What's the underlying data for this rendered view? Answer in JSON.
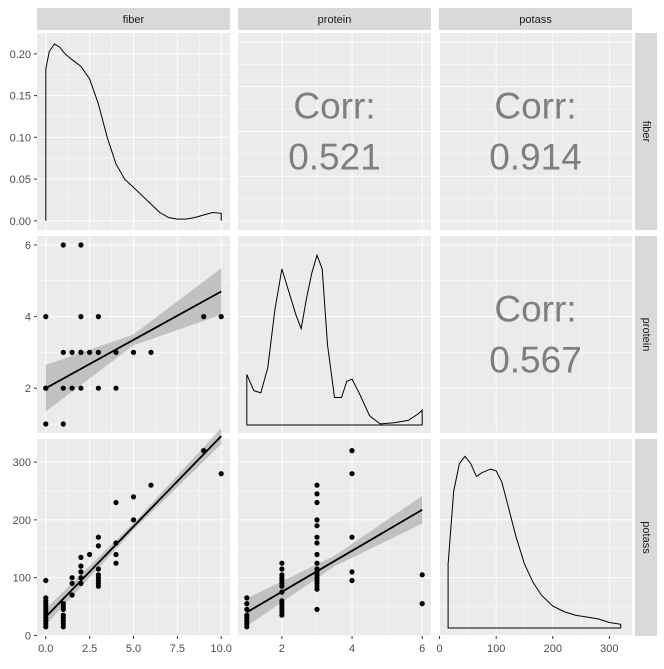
{
  "chart_data": {
    "type": "scatter",
    "variables": [
      "fiber",
      "protein",
      "potass"
    ],
    "strip_labels": {
      "col": [
        "fiber",
        "protein",
        "potass"
      ],
      "row": [
        "fiber",
        "protein",
        "potass"
      ]
    },
    "corr_label": "Corr:",
    "correlations": {
      "fiber_protein": "0.521",
      "fiber_potass": "0.914",
      "protein_potass": "0.567"
    },
    "axes": {
      "fiber": {
        "range": [
          -0.5,
          10.5
        ],
        "ticks": [
          0,
          2.5,
          5,
          7.5,
          10
        ],
        "tick_labels": [
          "0.0",
          "2.5",
          "5.0",
          "7.5",
          "10.0"
        ]
      },
      "protein": {
        "range": [
          0.75,
          6.25
        ],
        "ticks": [
          2,
          4,
          6
        ],
        "tick_labels": [
          "2",
          "4",
          "6"
        ]
      },
      "potass": {
        "range": [
          -1,
          340
        ],
        "ticks": [
          0,
          100,
          200,
          300
        ],
        "tick_labels": [
          "0",
          "100",
          "200",
          "300"
        ]
      },
      "density_fiber": {
        "range": [
          -0.011,
          0.225
        ],
        "ticks": [
          0,
          0.05,
          0.1,
          0.15,
          0.2
        ],
        "tick_labels": [
          "0.00",
          "0.05",
          "0.10",
          "0.15",
          "0.20"
        ]
      }
    },
    "densities": {
      "fiber": [
        [
          0,
          0.182
        ],
        [
          0.2,
          0.203
        ],
        [
          0.5,
          0.212
        ],
        [
          0.8,
          0.208
        ],
        [
          1.1,
          0.2
        ],
        [
          1.5,
          0.193
        ],
        [
          2.0,
          0.185
        ],
        [
          2.5,
          0.17
        ],
        [
          3.0,
          0.14
        ],
        [
          3.5,
          0.1
        ],
        [
          4.0,
          0.068
        ],
        [
          4.5,
          0.05
        ],
        [
          5.0,
          0.04
        ],
        [
          5.5,
          0.03
        ],
        [
          6.0,
          0.02
        ],
        [
          6.5,
          0.01
        ],
        [
          7.0,
          0.004
        ],
        [
          7.5,
          0.002
        ],
        [
          8.0,
          0.002
        ],
        [
          8.5,
          0.004
        ],
        [
          9.0,
          0.007
        ],
        [
          9.5,
          0.01
        ],
        [
          10.0,
          0.009
        ]
      ],
      "protein": [
        [
          1.0,
          0.22
        ],
        [
          1.2,
          0.15
        ],
        [
          1.4,
          0.14
        ],
        [
          1.6,
          0.25
        ],
        [
          1.8,
          0.5
        ],
        [
          2.0,
          0.68
        ],
        [
          2.2,
          0.58
        ],
        [
          2.4,
          0.48
        ],
        [
          2.55,
          0.42
        ],
        [
          2.7,
          0.55
        ],
        [
          2.85,
          0.66
        ],
        [
          3.0,
          0.74
        ],
        [
          3.15,
          0.68
        ],
        [
          3.3,
          0.35
        ],
        [
          3.5,
          0.12
        ],
        [
          3.7,
          0.12
        ],
        [
          3.85,
          0.19
        ],
        [
          4.0,
          0.2
        ],
        [
          4.2,
          0.14
        ],
        [
          4.5,
          0.04
        ],
        [
          4.8,
          0.005
        ],
        [
          5.2,
          0.01
        ],
        [
          5.6,
          0.02
        ],
        [
          5.9,
          0.05
        ],
        [
          6.0,
          0.065
        ]
      ],
      "potass": [
        [
          15,
          0.0035
        ],
        [
          25,
          0.0075
        ],
        [
          35,
          0.009
        ],
        [
          45,
          0.0094
        ],
        [
          55,
          0.009
        ],
        [
          65,
          0.0083
        ],
        [
          75,
          0.0085
        ],
        [
          90,
          0.0087
        ],
        [
          100,
          0.0086
        ],
        [
          110,
          0.008
        ],
        [
          120,
          0.0068
        ],
        [
          135,
          0.005
        ],
        [
          150,
          0.0035
        ],
        [
          165,
          0.0025
        ],
        [
          180,
          0.0018
        ],
        [
          200,
          0.0012
        ],
        [
          220,
          0.0009
        ],
        [
          240,
          0.0007
        ],
        [
          260,
          0.0006
        ],
        [
          280,
          0.0005
        ],
        [
          300,
          0.0003
        ],
        [
          320,
          0.0002
        ]
      ]
    },
    "density_scale": {
      "protein_max": 0.78,
      "potass_max": 0.0098
    },
    "scatter": {
      "fiber_protein": [
        [
          0,
          4
        ],
        [
          0,
          2
        ],
        [
          0,
          2
        ],
        [
          0,
          1
        ],
        [
          1,
          6
        ],
        [
          1,
          3
        ],
        [
          1,
          2
        ],
        [
          1,
          1
        ],
        [
          1.5,
          3
        ],
        [
          1.5,
          2
        ],
        [
          2,
          6
        ],
        [
          2,
          3
        ],
        [
          2,
          3
        ],
        [
          2,
          2
        ],
        [
          2,
          4
        ],
        [
          2.5,
          3
        ],
        [
          3,
          4
        ],
        [
          3,
          3
        ],
        [
          3,
          2
        ],
        [
          4,
          3
        ],
        [
          4,
          2
        ],
        [
          5,
          3
        ],
        [
          6,
          3
        ],
        [
          9,
          4
        ],
        [
          10,
          4
        ]
      ],
      "fiber_potass": [
        [
          0,
          95
        ],
        [
          0,
          65
        ],
        [
          0,
          60
        ],
        [
          0,
          55
        ],
        [
          0,
          50
        ],
        [
          0,
          45
        ],
        [
          0,
          40
        ],
        [
          0,
          35
        ],
        [
          0,
          30
        ],
        [
          0,
          25
        ],
        [
          0,
          20
        ],
        [
          0,
          15
        ],
        [
          1,
          55
        ],
        [
          1,
          45
        ],
        [
          1,
          35
        ],
        [
          1,
          30
        ],
        [
          1,
          25
        ],
        [
          1,
          20
        ],
        [
          1,
          15
        ],
        [
          1,
          50
        ],
        [
          1.5,
          70
        ],
        [
          1.5,
          90
        ],
        [
          1.5,
          100
        ],
        [
          2,
          135
        ],
        [
          2,
          120
        ],
        [
          2,
          110
        ],
        [
          2,
          100
        ],
        [
          2,
          90
        ],
        [
          2.5,
          140
        ],
        [
          3,
          170
        ],
        [
          3,
          155
        ],
        [
          3,
          115
        ],
        [
          3,
          105
        ],
        [
          3,
          100
        ],
        [
          3,
          95
        ],
        [
          3,
          90
        ],
        [
          3,
          85
        ],
        [
          4,
          230
        ],
        [
          4,
          160
        ],
        [
          4,
          140
        ],
        [
          4,
          125
        ],
        [
          5,
          240
        ],
        [
          5,
          200
        ],
        [
          6,
          260
        ],
        [
          9,
          320
        ],
        [
          10,
          280
        ]
      ],
      "protein_potass": [
        [
          1,
          65
        ],
        [
          1,
          55
        ],
        [
          1,
          45
        ],
        [
          1,
          35
        ],
        [
          1,
          30
        ],
        [
          1,
          25
        ],
        [
          1,
          20
        ],
        [
          1,
          15
        ],
        [
          2,
          125
        ],
        [
          2,
          115
        ],
        [
          2,
          105
        ],
        [
          2,
          100
        ],
        [
          2,
          95
        ],
        [
          2,
          90
        ],
        [
          2,
          85
        ],
        [
          2,
          75
        ],
        [
          2,
          60
        ],
        [
          2,
          55
        ],
        [
          2,
          50
        ],
        [
          2,
          45
        ],
        [
          2,
          40
        ],
        [
          2,
          35
        ],
        [
          3,
          260
        ],
        [
          3,
          245
        ],
        [
          3,
          230
        ],
        [
          3,
          200
        ],
        [
          3,
          190
        ],
        [
          3,
          170
        ],
        [
          3,
          160
        ],
        [
          3,
          140
        ],
        [
          3,
          125
        ],
        [
          3,
          115
        ],
        [
          3,
          110
        ],
        [
          3,
          105
        ],
        [
          3,
          100
        ],
        [
          3,
          95
        ],
        [
          3,
          90
        ],
        [
          3,
          85
        ],
        [
          3,
          80
        ],
        [
          3,
          45
        ],
        [
          4,
          320
        ],
        [
          4,
          280
        ],
        [
          4,
          170
        ],
        [
          4,
          110
        ],
        [
          4,
          95
        ],
        [
          6,
          105
        ],
        [
          6,
          55
        ]
      ]
    },
    "fits": {
      "fiber_protein": {
        "intercept": 2.0,
        "slope": 0.27,
        "se_base": 0.15,
        "se_spread": 0.1
      },
      "fiber_potass": {
        "intercept": 32,
        "slope": 31.3,
        "se_base": 6,
        "se_spread": 1.6
      },
      "protein_potass": {
        "intercept": 4.5,
        "slope": 35.5,
        "se_base": 9,
        "se_spread": 6
      }
    },
    "colors": {
      "panel_bg": "#ebebeb",
      "grid": "#ffffff",
      "strip_bg": "#d9d9d9",
      "point": "#000000",
      "line": "#000000",
      "ribbon": "#b3b3b3",
      "corr_text": "#7f7f7f",
      "axis_text": "#4d4d4d"
    }
  }
}
